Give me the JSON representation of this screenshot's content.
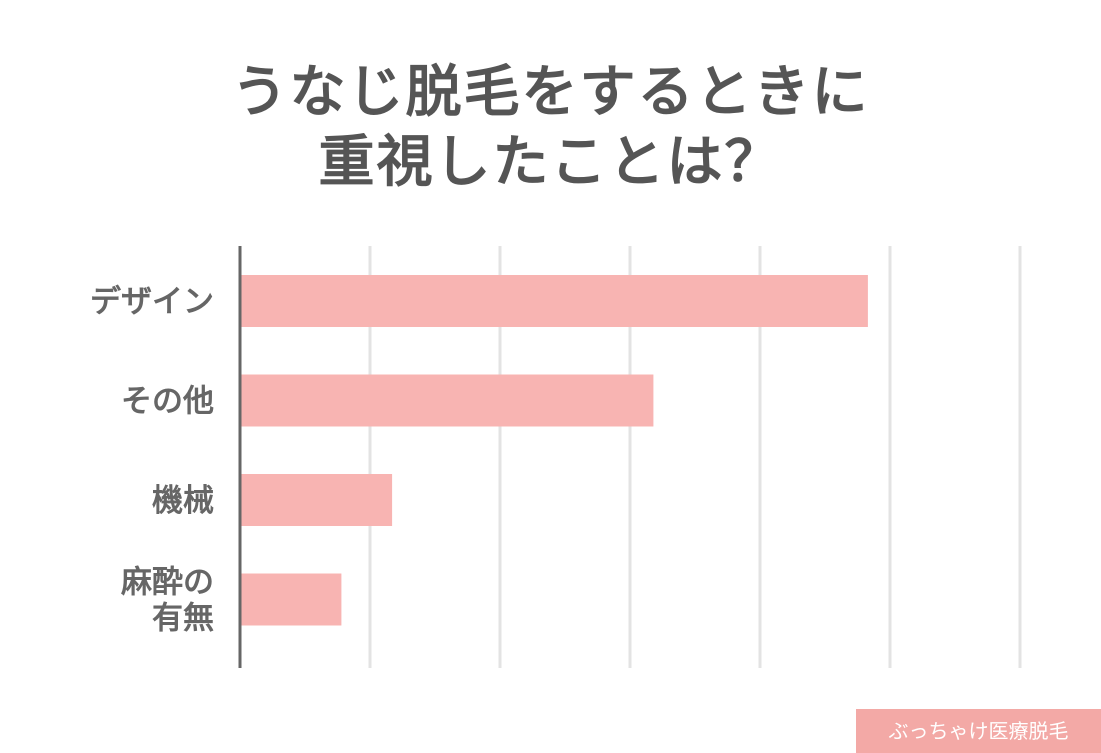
{
  "title": {
    "line1": "うなじ脱毛をするときに",
    "line2": "重視したことは？"
  },
  "badge": "ぶっちゃけ医療脱毛",
  "colors": {
    "bar": "#f8b4b2",
    "grid": "#e3e3e3",
    "axis": "#666666",
    "text": "#555555",
    "badge": "#f3a9a6"
  },
  "chart_data": {
    "type": "bar",
    "orientation": "horizontal",
    "categories": [
      [
        "デザイン"
      ],
      [
        "その他"
      ],
      [
        "機械"
      ],
      [
        "麻酔の",
        "有無"
      ]
    ],
    "values": [
      48.3,
      31.8,
      11.7,
      7.8
    ],
    "xlim": [
      0,
      60
    ],
    "grid": true,
    "title": "",
    "xlabel": "",
    "ylabel": ""
  }
}
